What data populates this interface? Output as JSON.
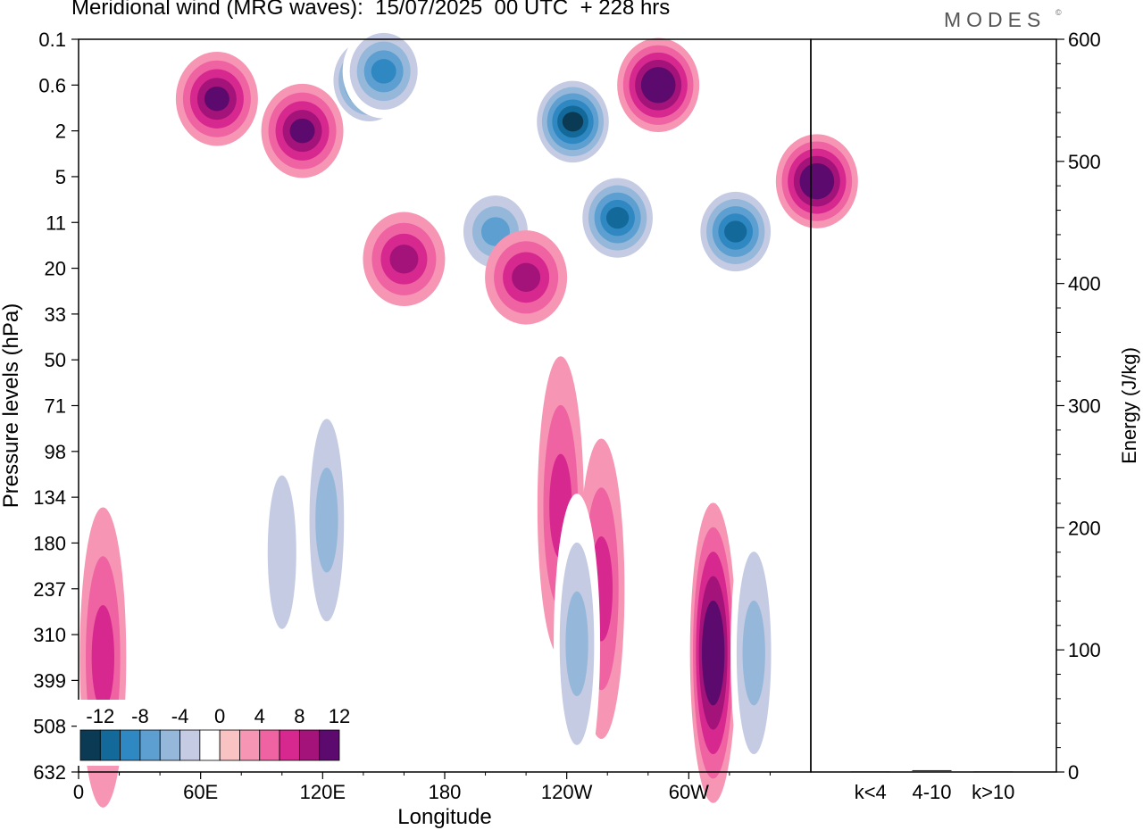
{
  "header": {
    "title": "Meridional wind (MRG waves):  15/07/2025  00 UTC  + 228 hrs",
    "brand": "MODES",
    "brand_mark": "©"
  },
  "chart_data": [
    {
      "type": "heatmap",
      "xlabel": "Longitude",
      "ylabel": "Pressure levels (hPa)",
      "x_ticks": [
        "0",
        "60E",
        "120E",
        "180",
        "120W",
        "60W"
      ],
      "y_levels": [
        "0.1",
        "0.6",
        "2",
        "5",
        "11",
        "20",
        "33",
        "50",
        "71",
        "98",
        "134",
        "180",
        "237",
        "310",
        "399",
        "508",
        "632"
      ],
      "colorbar": {
        "labels": [
          "-12",
          "-8",
          "-4",
          "0",
          "4",
          "8",
          "12"
        ],
        "levels": [
          -14,
          -12,
          -10,
          -8,
          -6,
          -4,
          -2,
          2,
          4,
          6,
          8,
          10,
          12,
          14
        ],
        "colors": [
          "#0b3a55",
          "#136a9a",
          "#2f88c1",
          "#5d9fd0",
          "#95b8da",
          "#c4cbe3",
          "#ffffff",
          "#f8c3c2",
          "#f696b4",
          "#ef63a2",
          "#d7288f",
          "#a41379",
          "#5c0a6e"
        ]
      },
      "features": [
        {
          "lon": 143,
          "lev": 0.9,
          "value": -13
        },
        {
          "lon": 243,
          "lev": 1.8,
          "value": -14
        },
        {
          "lon": 265,
          "lev": 3.9,
          "value": -12
        },
        {
          "lon": 323,
          "lev": 4.2,
          "value": -12
        },
        {
          "lon": 205,
          "lev": 4.2,
          "value": -8
        },
        {
          "lon": 150,
          "lev": 0.7,
          "value": -10
        },
        {
          "lon": 285,
          "lev": 1.0,
          "value": 12
        },
        {
          "lon": 363,
          "lev": 3.1,
          "value": 12
        },
        {
          "lon": 110,
          "lev": 2.0,
          "value": 10
        },
        {
          "lon": 68,
          "lev": 1.3,
          "value": 10
        },
        {
          "lon": 160,
          "lev": 4.8,
          "value": 8
        },
        {
          "lon": 220,
          "lev": 5.2,
          "value": 8
        },
        {
          "lon": 312,
          "lev": 13.4,
          "value": 11
        },
        {
          "lon": 122,
          "lev": 10.5,
          "value": -6
        },
        {
          "lon": 100,
          "lev": 11.2,
          "value": -4
        },
        {
          "lon": 257,
          "lev": 12.0,
          "value": 6
        },
        {
          "lon": 237,
          "lev": 10.2,
          "value": 5
        },
        {
          "lon": 245,
          "lev": 13.2,
          "value": -6
        },
        {
          "lon": 332,
          "lev": 13.4,
          "value": -6
        },
        {
          "lon": 12,
          "lev": 13.5,
          "value": 5
        }
      ]
    },
    {
      "type": "bar",
      "categories": [
        "k<4",
        "4-10",
        "k>10"
      ],
      "values": [
        0.5,
        1.5,
        0.3
      ],
      "ylabel": "Energy (J/kg)",
      "ylim": [
        0,
        600
      ],
      "y_ticks": [
        "0",
        "100",
        "200",
        "300",
        "400",
        "500",
        "600"
      ]
    }
  ]
}
